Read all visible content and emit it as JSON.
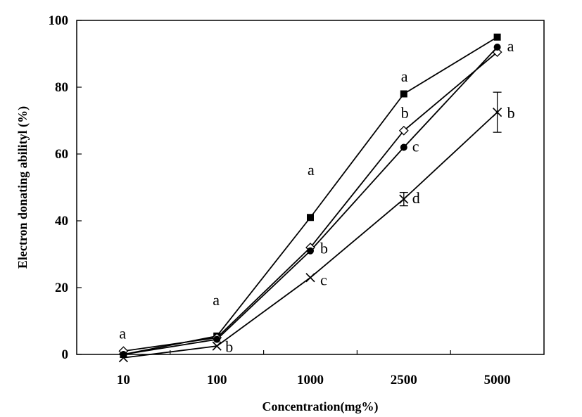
{
  "chart_data": {
    "type": "line",
    "title": "",
    "xlabel": "Concentration(mg%)",
    "ylabel": "Electron donating abilityl (%)",
    "categories": [
      "10",
      "100",
      "1000",
      "2500",
      "5000"
    ],
    "yticks": [
      "0",
      "20",
      "40",
      "60",
      "80",
      "100"
    ],
    "ylim": [
      0,
      100
    ],
    "grid": false,
    "legend": "none",
    "series": [
      {
        "marker": "square-filled",
        "values": [
          0,
          5.5,
          41,
          78,
          95
        ]
      },
      {
        "marker": "diamond-open",
        "values": [
          1,
          5,
          32,
          67,
          90.5
        ]
      },
      {
        "marker": "circle-filled",
        "values": [
          0,
          4.5,
          31,
          62,
          92
        ]
      },
      {
        "marker": "cross",
        "values": [
          -1,
          2.5,
          23,
          46.5,
          72.5
        ],
        "error": [
          0,
          0,
          0,
          2,
          6
        ]
      }
    ],
    "annotations": [
      {
        "text": "a",
        "category": "10",
        "value": 6
      },
      {
        "text": "a",
        "category": "100",
        "value": 16
      },
      {
        "text": "b",
        "category": "100",
        "value": 2
      },
      {
        "text": "a",
        "category": "1000",
        "value": 55
      },
      {
        "text": "b",
        "category": "1000",
        "value": 31.5
      },
      {
        "text": "c",
        "category": "1000",
        "value": 22
      },
      {
        "text": "a",
        "category": "2500",
        "value": 83
      },
      {
        "text": "b",
        "category": "2500",
        "value": 72
      },
      {
        "text": "c",
        "category": "2500",
        "value": 62
      },
      {
        "text": "d",
        "category": "2500",
        "value": 46.5
      },
      {
        "text": "a",
        "category": "5000",
        "value": 92
      },
      {
        "text": "b",
        "category": "5000",
        "value": 72
      }
    ]
  }
}
